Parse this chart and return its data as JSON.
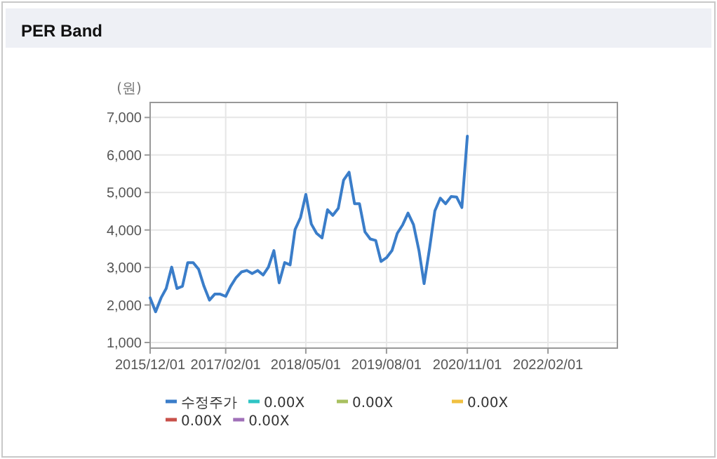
{
  "chart_data": {
    "type": "line",
    "title": "PER Band",
    "ylabel": "(원)",
    "x": [
      "2015-12",
      "2016-01",
      "2016-02",
      "2016-03",
      "2016-04",
      "2016-05",
      "2016-06",
      "2016-07",
      "2016-08",
      "2016-09",
      "2016-10",
      "2016-11",
      "2016-12",
      "2017-01",
      "2017-02",
      "2017-03",
      "2017-04",
      "2017-05",
      "2017-06",
      "2017-07",
      "2017-08",
      "2017-09",
      "2017-10",
      "2017-11",
      "2017-12",
      "2018-01",
      "2018-02",
      "2018-03",
      "2018-04",
      "2018-05",
      "2018-06",
      "2018-07",
      "2018-08",
      "2018-09",
      "2018-10",
      "2018-11",
      "2018-12",
      "2019-01",
      "2019-02",
      "2019-03",
      "2019-04",
      "2019-05",
      "2019-06",
      "2019-07",
      "2019-08",
      "2019-09",
      "2019-10",
      "2019-11",
      "2019-12",
      "2020-01",
      "2020-02",
      "2020-03",
      "2020-04",
      "2020-05",
      "2020-06",
      "2020-07",
      "2020-08",
      "2020-09",
      "2020-10",
      "2020-11"
    ],
    "series": [
      {
        "name": "수정주가",
        "color": "#3a7dc9",
        "values": [
          2190,
          1820,
          2190,
          2440,
          3010,
          2440,
          2500,
          3130,
          3130,
          2950,
          2500,
          2130,
          2290,
          2290,
          2230,
          2500,
          2730,
          2880,
          2920,
          2840,
          2920,
          2800,
          3010,
          3450,
          2590,
          3130,
          3070,
          4010,
          4330,
          4950,
          4160,
          3910,
          3790,
          4540,
          4390,
          4580,
          5330,
          5540,
          4700,
          4700,
          3950,
          3760,
          3720,
          3160,
          3260,
          3450,
          3910,
          4140,
          4450,
          4140,
          3450,
          2570,
          3510,
          4510,
          4850,
          4700,
          4890,
          4880,
          4600,
          6500
        ]
      },
      {
        "name": "0.00X",
        "color": "#2ec4c4",
        "values": [
          null,
          null,
          null,
          null,
          null,
          null,
          null,
          null,
          null,
          null,
          null,
          null,
          null,
          null,
          null,
          null,
          null,
          null,
          null,
          null,
          null,
          null,
          null,
          null,
          null,
          null,
          null,
          null,
          null,
          null,
          null,
          null,
          null,
          null,
          null,
          null,
          null,
          null,
          null,
          null,
          null,
          null,
          null,
          null,
          null,
          null,
          null,
          null,
          null,
          null,
          null,
          null,
          null,
          null,
          null,
          null,
          null,
          null,
          null,
          null
        ]
      },
      {
        "name": "0.00X",
        "color": "#a8c060",
        "values": [
          null,
          null,
          null,
          null,
          null,
          null,
          null,
          null,
          null,
          null,
          null,
          null,
          null,
          null,
          null,
          null,
          null,
          null,
          null,
          null,
          null,
          null,
          null,
          null,
          null,
          null,
          null,
          null,
          null,
          null,
          null,
          null,
          null,
          null,
          null,
          null,
          null,
          null,
          null,
          null,
          null,
          null,
          null,
          null,
          null,
          null,
          null,
          null,
          null,
          null,
          null,
          null,
          null,
          null,
          null,
          null,
          null,
          null,
          null,
          null
        ]
      },
      {
        "name": "0.00X",
        "color": "#f0c040",
        "values": [
          null,
          null,
          null,
          null,
          null,
          null,
          null,
          null,
          null,
          null,
          null,
          null,
          null,
          null,
          null,
          null,
          null,
          null,
          null,
          null,
          null,
          null,
          null,
          null,
          null,
          null,
          null,
          null,
          null,
          null,
          null,
          null,
          null,
          null,
          null,
          null,
          null,
          null,
          null,
          null,
          null,
          null,
          null,
          null,
          null,
          null,
          null,
          null,
          null,
          null,
          null,
          null,
          null,
          null,
          null,
          null,
          null,
          null,
          null,
          null
        ]
      },
      {
        "name": "0.00X",
        "color": "#c8504a",
        "values": [
          null,
          null,
          null,
          null,
          null,
          null,
          null,
          null,
          null,
          null,
          null,
          null,
          null,
          null,
          null,
          null,
          null,
          null,
          null,
          null,
          null,
          null,
          null,
          null,
          null,
          null,
          null,
          null,
          null,
          null,
          null,
          null,
          null,
          null,
          null,
          null,
          null,
          null,
          null,
          null,
          null,
          null,
          null,
          null,
          null,
          null,
          null,
          null,
          null,
          null,
          null,
          null,
          null,
          null,
          null,
          null,
          null,
          null,
          null,
          null
        ]
      },
      {
        "name": "0.00X",
        "color": "#a070b8",
        "values": [
          null,
          null,
          null,
          null,
          null,
          null,
          null,
          null,
          null,
          null,
          null,
          null,
          null,
          null,
          null,
          null,
          null,
          null,
          null,
          null,
          null,
          null,
          null,
          null,
          null,
          null,
          null,
          null,
          null,
          null,
          null,
          null,
          null,
          null,
          null,
          null,
          null,
          null,
          null,
          null,
          null,
          null,
          null,
          null,
          null,
          null,
          null,
          null,
          null,
          null,
          null,
          null,
          null,
          null,
          null,
          null,
          null,
          null,
          null,
          null
        ]
      }
    ],
    "xlim": [
      "2015-12-01",
      "2023-03-01"
    ],
    "xticks": [
      {
        "value": "2015-12-01",
        "label": "2015/12/01"
      },
      {
        "value": "2017-02-01",
        "label": "2017/02/01"
      },
      {
        "value": "2018-05-01",
        "label": "2018/05/01"
      },
      {
        "value": "2019-08-01",
        "label": "2019/08/01"
      },
      {
        "value": "2020-11-01",
        "label": "2020/11/01"
      },
      {
        "value": "2022-02-01",
        "label": "2022/02/01"
      }
    ],
    "ylim": [
      850,
      7400
    ],
    "yticks": [
      {
        "value": 1000,
        "label": "1,000"
      },
      {
        "value": 2000,
        "label": "2,000"
      },
      {
        "value": 3000,
        "label": "3,000"
      },
      {
        "value": 4000,
        "label": "4,000"
      },
      {
        "value": 5000,
        "label": "5,000"
      },
      {
        "value": 6000,
        "label": "6,000"
      },
      {
        "value": 7000,
        "label": "7,000"
      }
    ],
    "grid": true,
    "legend": "bottom",
    "marker": "none",
    "line_style": "solid"
  }
}
